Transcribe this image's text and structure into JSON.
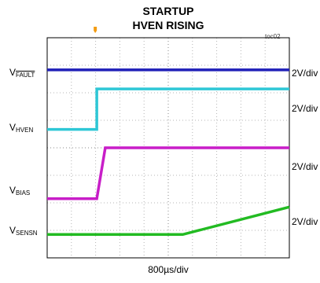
{
  "chart_data": {
    "type": "line",
    "title": "STARTUP",
    "subtitle": "HVEN RISING",
    "figure_id": "toc02",
    "xlabel": "800µs/div",
    "x_divisions": 10,
    "y_divisions": 8,
    "grid": true,
    "series": [
      {
        "name_main": "V",
        "name_sub": "FAULT",
        "sub_overline": true,
        "scale": "2V/div",
        "color": "#1f1fb8",
        "points": [
          [
            0,
            6.83
          ],
          [
            10,
            6.83
          ]
        ]
      },
      {
        "name_main": "V",
        "name_sub": "HVEN",
        "sub_overline": false,
        "scale": "2V/div",
        "color": "#2ec7d6",
        "points": [
          [
            0,
            4.67
          ],
          [
            2.05,
            4.67
          ],
          [
            2.05,
            6.14
          ],
          [
            10,
            6.14
          ]
        ]
      },
      {
        "name_main": "V",
        "name_sub": "BIAS",
        "sub_overline": false,
        "scale": "2V/div",
        "color": "#c81ec8",
        "points": [
          [
            0,
            2.15
          ],
          [
            2.05,
            2.15
          ],
          [
            2.4,
            4.0
          ],
          [
            10,
            4.0
          ]
        ]
      },
      {
        "name_main": "V",
        "name_sub": "SENSN",
        "sub_overline": false,
        "scale": "2V/div",
        "color": "#22bb22",
        "points": [
          [
            0,
            0.85
          ],
          [
            5.6,
            0.85
          ],
          [
            10,
            1.85
          ]
        ]
      }
    ]
  }
}
